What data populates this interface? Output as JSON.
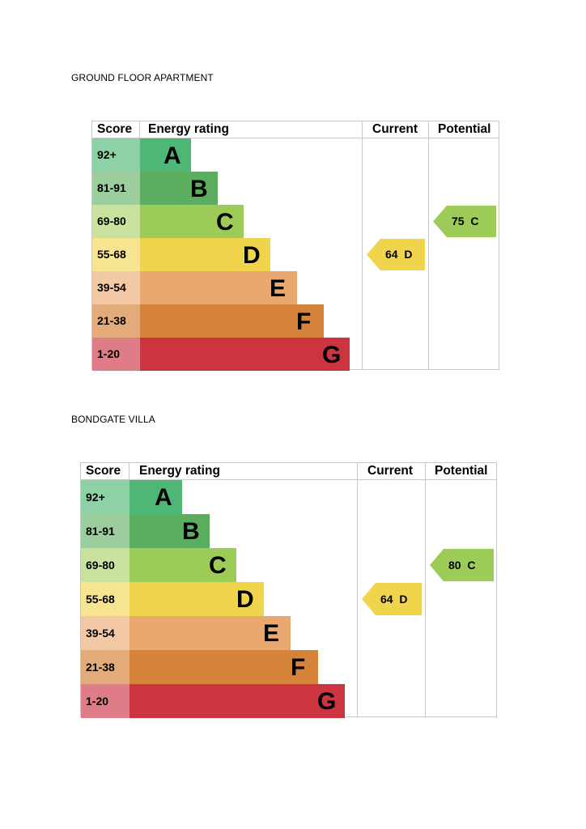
{
  "charts": [
    {
      "title": "GROUND FLOOR APARTMENT",
      "headers": {
        "score": "Score",
        "rating": "Energy rating",
        "current": "Current",
        "potential": "Potential"
      },
      "bands": [
        {
          "score": "92+",
          "letter": "A",
          "color": "#4fb775",
          "score_color": "#8fd1a6"
        },
        {
          "score": "81-91",
          "letter": "B",
          "color": "#5bad5f",
          "score_color": "#9bcd9d"
        },
        {
          "score": "69-80",
          "letter": "C",
          "color": "#9ccb58",
          "score_color": "#c9e2a0"
        },
        {
          "score": "55-68",
          "letter": "D",
          "color": "#f0d44c",
          "score_color": "#f6e490"
        },
        {
          "score": "39-54",
          "letter": "E",
          "color": "#e9a86f",
          "score_color": "#f2c9a4"
        },
        {
          "score": "21-38",
          "letter": "F",
          "color": "#d6843a",
          "score_color": "#e3ab7a"
        },
        {
          "score": "1-20",
          "letter": "G",
          "color": "#cc3540",
          "score_color": "#de7c87"
        }
      ],
      "current": {
        "value": 64,
        "letter": "D",
        "label": "64  D",
        "color": "#f0d44c"
      },
      "potential": {
        "value": 75,
        "letter": "C",
        "label": "75  C",
        "color": "#9ccb58"
      }
    },
    {
      "title": "BONDGATE VILLA",
      "headers": {
        "score": "Score",
        "rating": "Energy rating",
        "current": "Current",
        "potential": "Potential"
      },
      "bands": [
        {
          "score": "92+",
          "letter": "A",
          "color": "#4fb775",
          "score_color": "#8fd1a6"
        },
        {
          "score": "81-91",
          "letter": "B",
          "color": "#5bad5f",
          "score_color": "#9bcd9d"
        },
        {
          "score": "69-80",
          "letter": "C",
          "color": "#9ccb58",
          "score_color": "#c9e2a0"
        },
        {
          "score": "55-68",
          "letter": "D",
          "color": "#f0d44c",
          "score_color": "#f6e490"
        },
        {
          "score": "39-54",
          "letter": "E",
          "color": "#e9a86f",
          "score_color": "#f2c9a4"
        },
        {
          "score": "21-38",
          "letter": "F",
          "color": "#d6843a",
          "score_color": "#e3ab7a"
        },
        {
          "score": "1-20",
          "letter": "G",
          "color": "#cc3540",
          "score_color": "#de7c87"
        }
      ],
      "current": {
        "value": 64,
        "letter": "D",
        "label": "64  D",
        "color": "#f0d44c"
      },
      "potential": {
        "value": 80,
        "letter": "C",
        "label": "80  C",
        "color": "#9ccb58"
      }
    }
  ]
}
